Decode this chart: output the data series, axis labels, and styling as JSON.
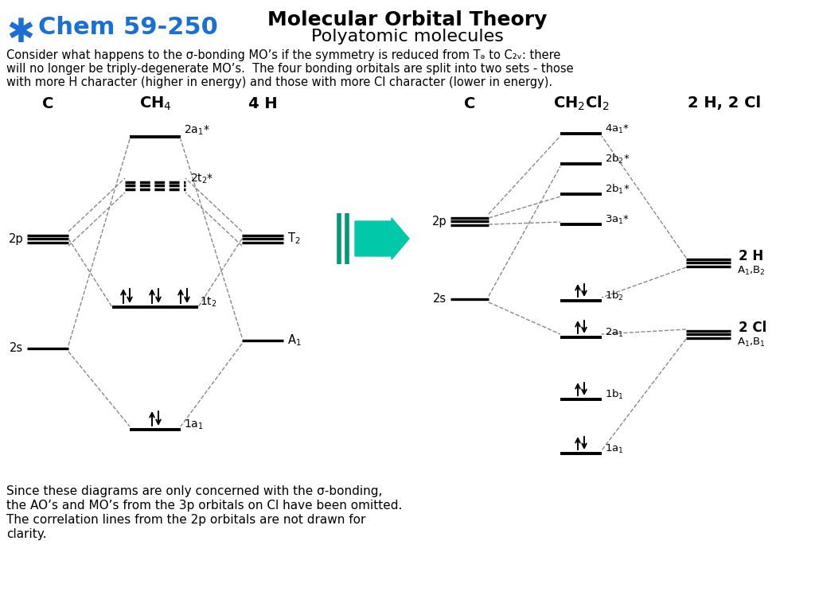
{
  "title1": "Molecular Orbital Theory",
  "title2": "Polyatomic molecules",
  "chem_label": "Chem 59-250",
  "body_text": "Consider what happens to the σ-bonding MO’s if the symmetry is reduced from Tₓ to C₂ᵥ: there\nwill no longer be triply-degenerate MO’s.  The four bonding orbitals are split into two sets - those\nwith more H character (higher in energy) and those with more Cl character (lower in energy).",
  "bottom_text": "Since these diagrams are only concerned with the σ-bonding,\nthe AO’s and MO’s from the 3p orbitals on Cl have been omitted.\nThe correlation lines from the 2p orbitals are not drawn for\nclarity.",
  "bg_color": "#ffffff",
  "line_color": "#000000",
  "dashed_color": "#888888",
  "chem_color": "#1a6fd4",
  "teal_color": "#00c8a8",
  "teal_dark": "#009978"
}
